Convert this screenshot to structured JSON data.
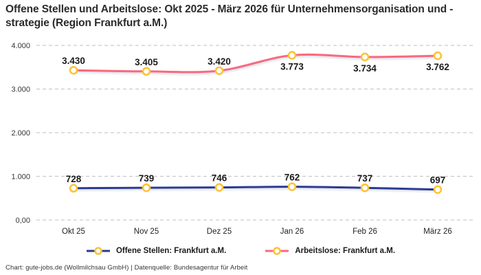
{
  "title": "Offene Stellen und Arbeitslose: Okt 2025 - März 2026 für Unternehmensorganisation und -strategie (Region Frankfurt a.M.)",
  "footer": "Chart: gute-jobs.de (Wollmilchsau GmbH) | Datenquelle: Bundesagentur für Arbeit",
  "colors": {
    "offene": "#2b3a94",
    "arbeitslose": "#f8697e",
    "marker_ring": "#fcc231",
    "marker_fill": "#ffffff",
    "grid": "#c9c9c9",
    "label_text": "#1a1a1a",
    "axis_text": "#333333"
  },
  "chart_data": {
    "type": "line",
    "categories": [
      "Okt 25",
      "Nov 25",
      "Dez 25",
      "Jan 26",
      "Feb 26",
      "März 26"
    ],
    "series": [
      {
        "name": "Offene Stellen: Frankfurt a.M.",
        "values": [
          728,
          739,
          746,
          762,
          737,
          697
        ],
        "labels": [
          "728",
          "739",
          "746",
          "762",
          "737",
          "697"
        ],
        "color_key": "offene",
        "label_placement": [
          "above",
          "above",
          "above",
          "above",
          "above",
          "above"
        ]
      },
      {
        "name": "Arbeitslose: Frankfurt a.M.",
        "values": [
          3430,
          3405,
          3420,
          3773,
          3734,
          3762
        ],
        "labels": [
          "3.430",
          "3.405",
          "3.420",
          "3.773",
          "3.734",
          "3.762"
        ],
        "color_key": "arbeitslose",
        "label_placement": [
          "above",
          "above",
          "above",
          "below",
          "below",
          "below"
        ]
      }
    ],
    "y_ticks": [
      {
        "value": 0,
        "label": "0,00"
      },
      {
        "value": 1000,
        "label": "1.000"
      },
      {
        "value": 2000,
        "label": "2.000"
      },
      {
        "value": 3000,
        "label": "3.000"
      },
      {
        "value": 4000,
        "label": "4.000"
      }
    ],
    "ylim": [
      0,
      4000
    ],
    "grid": "horizontal-dashed",
    "legend_position": "bottom",
    "marker": "open-circle-yellow-ring"
  }
}
